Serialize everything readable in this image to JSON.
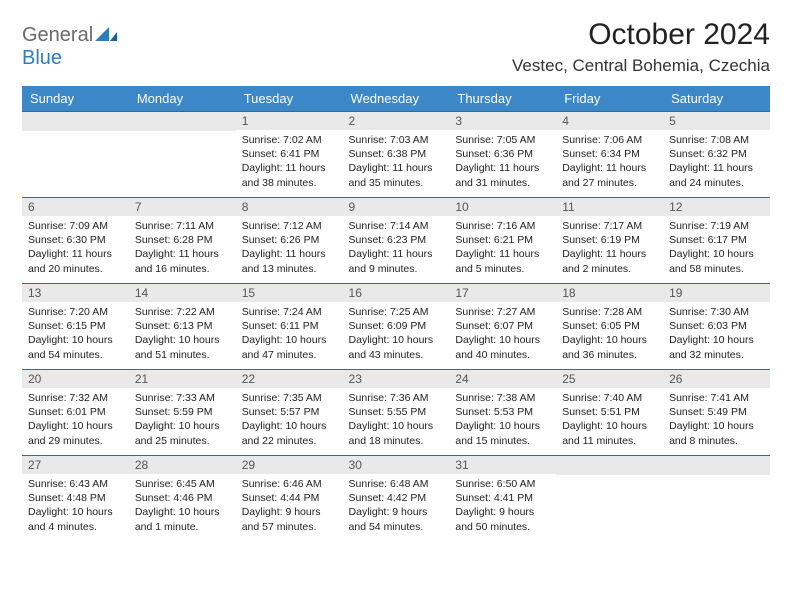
{
  "logo": {
    "part1": "General",
    "part2": "Blue"
  },
  "title": "October 2024",
  "subtitle": "Vestec, Central Bohemia, Czechia",
  "colors": {
    "header_bg": "#3b87c8",
    "header_text": "#ffffff",
    "daynum_bg": "#e9e9e9",
    "daynum_border": "#2c6da3",
    "logo_gray": "#6a6a6a",
    "logo_blue": "#2f7dc1"
  },
  "day_headers": [
    "Sunday",
    "Monday",
    "Tuesday",
    "Wednesday",
    "Thursday",
    "Friday",
    "Saturday"
  ],
  "weeks": [
    [
      null,
      null,
      {
        "n": "1",
        "sunrise": "Sunrise: 7:02 AM",
        "sunset": "Sunset: 6:41 PM",
        "daylight": "Daylight: 11 hours and 38 minutes."
      },
      {
        "n": "2",
        "sunrise": "Sunrise: 7:03 AM",
        "sunset": "Sunset: 6:38 PM",
        "daylight": "Daylight: 11 hours and 35 minutes."
      },
      {
        "n": "3",
        "sunrise": "Sunrise: 7:05 AM",
        "sunset": "Sunset: 6:36 PM",
        "daylight": "Daylight: 11 hours and 31 minutes."
      },
      {
        "n": "4",
        "sunrise": "Sunrise: 7:06 AM",
        "sunset": "Sunset: 6:34 PM",
        "daylight": "Daylight: 11 hours and 27 minutes."
      },
      {
        "n": "5",
        "sunrise": "Sunrise: 7:08 AM",
        "sunset": "Sunset: 6:32 PM",
        "daylight": "Daylight: 11 hours and 24 minutes."
      }
    ],
    [
      {
        "n": "6",
        "sunrise": "Sunrise: 7:09 AM",
        "sunset": "Sunset: 6:30 PM",
        "daylight": "Daylight: 11 hours and 20 minutes."
      },
      {
        "n": "7",
        "sunrise": "Sunrise: 7:11 AM",
        "sunset": "Sunset: 6:28 PM",
        "daylight": "Daylight: 11 hours and 16 minutes."
      },
      {
        "n": "8",
        "sunrise": "Sunrise: 7:12 AM",
        "sunset": "Sunset: 6:26 PM",
        "daylight": "Daylight: 11 hours and 13 minutes."
      },
      {
        "n": "9",
        "sunrise": "Sunrise: 7:14 AM",
        "sunset": "Sunset: 6:23 PM",
        "daylight": "Daylight: 11 hours and 9 minutes."
      },
      {
        "n": "10",
        "sunrise": "Sunrise: 7:16 AM",
        "sunset": "Sunset: 6:21 PM",
        "daylight": "Daylight: 11 hours and 5 minutes."
      },
      {
        "n": "11",
        "sunrise": "Sunrise: 7:17 AM",
        "sunset": "Sunset: 6:19 PM",
        "daylight": "Daylight: 11 hours and 2 minutes."
      },
      {
        "n": "12",
        "sunrise": "Sunrise: 7:19 AM",
        "sunset": "Sunset: 6:17 PM",
        "daylight": "Daylight: 10 hours and 58 minutes."
      }
    ],
    [
      {
        "n": "13",
        "sunrise": "Sunrise: 7:20 AM",
        "sunset": "Sunset: 6:15 PM",
        "daylight": "Daylight: 10 hours and 54 minutes."
      },
      {
        "n": "14",
        "sunrise": "Sunrise: 7:22 AM",
        "sunset": "Sunset: 6:13 PM",
        "daylight": "Daylight: 10 hours and 51 minutes."
      },
      {
        "n": "15",
        "sunrise": "Sunrise: 7:24 AM",
        "sunset": "Sunset: 6:11 PM",
        "daylight": "Daylight: 10 hours and 47 minutes."
      },
      {
        "n": "16",
        "sunrise": "Sunrise: 7:25 AM",
        "sunset": "Sunset: 6:09 PM",
        "daylight": "Daylight: 10 hours and 43 minutes."
      },
      {
        "n": "17",
        "sunrise": "Sunrise: 7:27 AM",
        "sunset": "Sunset: 6:07 PM",
        "daylight": "Daylight: 10 hours and 40 minutes."
      },
      {
        "n": "18",
        "sunrise": "Sunrise: 7:28 AM",
        "sunset": "Sunset: 6:05 PM",
        "daylight": "Daylight: 10 hours and 36 minutes."
      },
      {
        "n": "19",
        "sunrise": "Sunrise: 7:30 AM",
        "sunset": "Sunset: 6:03 PM",
        "daylight": "Daylight: 10 hours and 32 minutes."
      }
    ],
    [
      {
        "n": "20",
        "sunrise": "Sunrise: 7:32 AM",
        "sunset": "Sunset: 6:01 PM",
        "daylight": "Daylight: 10 hours and 29 minutes."
      },
      {
        "n": "21",
        "sunrise": "Sunrise: 7:33 AM",
        "sunset": "Sunset: 5:59 PM",
        "daylight": "Daylight: 10 hours and 25 minutes."
      },
      {
        "n": "22",
        "sunrise": "Sunrise: 7:35 AM",
        "sunset": "Sunset: 5:57 PM",
        "daylight": "Daylight: 10 hours and 22 minutes."
      },
      {
        "n": "23",
        "sunrise": "Sunrise: 7:36 AM",
        "sunset": "Sunset: 5:55 PM",
        "daylight": "Daylight: 10 hours and 18 minutes."
      },
      {
        "n": "24",
        "sunrise": "Sunrise: 7:38 AM",
        "sunset": "Sunset: 5:53 PM",
        "daylight": "Daylight: 10 hours and 15 minutes."
      },
      {
        "n": "25",
        "sunrise": "Sunrise: 7:40 AM",
        "sunset": "Sunset: 5:51 PM",
        "daylight": "Daylight: 10 hours and 11 minutes."
      },
      {
        "n": "26",
        "sunrise": "Sunrise: 7:41 AM",
        "sunset": "Sunset: 5:49 PM",
        "daylight": "Daylight: 10 hours and 8 minutes."
      }
    ],
    [
      {
        "n": "27",
        "sunrise": "Sunrise: 6:43 AM",
        "sunset": "Sunset: 4:48 PM",
        "daylight": "Daylight: 10 hours and 4 minutes."
      },
      {
        "n": "28",
        "sunrise": "Sunrise: 6:45 AM",
        "sunset": "Sunset: 4:46 PM",
        "daylight": "Daylight: 10 hours and 1 minute."
      },
      {
        "n": "29",
        "sunrise": "Sunrise: 6:46 AM",
        "sunset": "Sunset: 4:44 PM",
        "daylight": "Daylight: 9 hours and 57 minutes."
      },
      {
        "n": "30",
        "sunrise": "Sunrise: 6:48 AM",
        "sunset": "Sunset: 4:42 PM",
        "daylight": "Daylight: 9 hours and 54 minutes."
      },
      {
        "n": "31",
        "sunrise": "Sunrise: 6:50 AM",
        "sunset": "Sunset: 4:41 PM",
        "daylight": "Daylight: 9 hours and 50 minutes."
      },
      null,
      null
    ]
  ]
}
